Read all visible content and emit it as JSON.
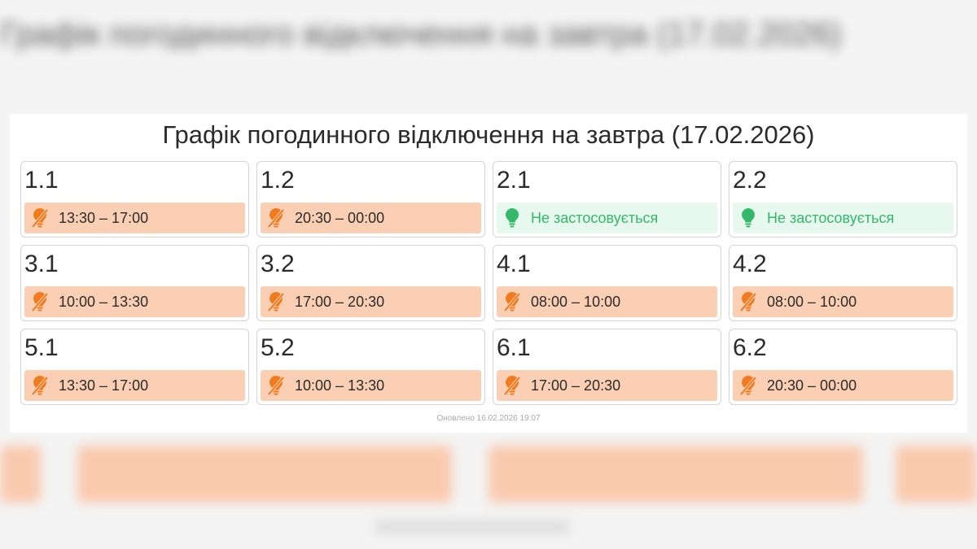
{
  "title": "Графік погодинного відключення на завтра (17.02.2026)",
  "colors": {
    "outage_bg": "#fbcfb3",
    "outage_icon": "#f07a1e",
    "ok_bg": "#e7f8ee",
    "ok_text": "#34b86a"
  },
  "queues": [
    {
      "name": "1.1",
      "status": "outage",
      "icon": "lightbulb-off-icon",
      "text": "13:30 – 17:00"
    },
    {
      "name": "1.2",
      "status": "outage",
      "icon": "lightbulb-off-icon",
      "text": "20:30 – 00:00"
    },
    {
      "name": "2.1",
      "status": "ok",
      "icon": "lightbulb-icon",
      "text": "Не застосовується"
    },
    {
      "name": "2.2",
      "status": "ok",
      "icon": "lightbulb-icon",
      "text": "Не застосовується"
    },
    {
      "name": "3.1",
      "status": "outage",
      "icon": "lightbulb-off-icon",
      "text": "10:00 – 13:30"
    },
    {
      "name": "3.2",
      "status": "outage",
      "icon": "lightbulb-off-icon",
      "text": "17:00 – 20:30"
    },
    {
      "name": "4.1",
      "status": "outage",
      "icon": "lightbulb-off-icon",
      "text": "08:00 – 10:00"
    },
    {
      "name": "4.2",
      "status": "outage",
      "icon": "lightbulb-off-icon",
      "text": "08:00 – 10:00"
    },
    {
      "name": "5.1",
      "status": "outage",
      "icon": "lightbulb-off-icon",
      "text": "13:30 – 17:00"
    },
    {
      "name": "5.2",
      "status": "outage",
      "icon": "lightbulb-off-icon",
      "text": "10:00 – 13:30"
    },
    {
      "name": "6.1",
      "status": "outage",
      "icon": "lightbulb-off-icon",
      "text": "17:00 – 20:30"
    },
    {
      "name": "6.2",
      "status": "outage",
      "icon": "lightbulb-off-icon",
      "text": "20:30 – 00:00"
    }
  ],
  "updated": "Оновлено 16.02.2026 19:07"
}
